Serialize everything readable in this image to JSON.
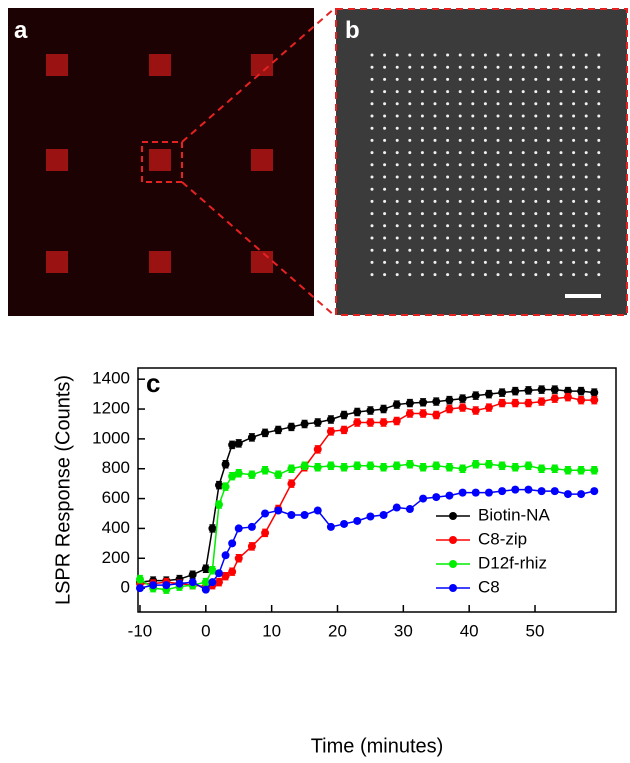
{
  "panel_labels": [
    "a",
    "b",
    "c"
  ],
  "chart_data": {
    "type": "line",
    "xlabel": "Time (minutes)",
    "ylabel": "LSPR Response (Counts)",
    "xlim": [
      -10.3,
      62.3
    ],
    "xticks": [
      -10,
      0,
      10,
      20,
      30,
      40,
      50
    ],
    "ylim": [
      -160,
      1475
    ],
    "yticks": [
      0,
      200,
      400,
      600,
      800,
      1000,
      1200,
      1400
    ],
    "legend": "lower right",
    "x": [
      -10,
      -8,
      -6,
      -4,
      -2,
      0,
      1,
      2,
      3,
      4,
      5,
      7,
      9,
      11,
      13,
      15,
      17,
      19,
      21,
      23,
      25,
      27,
      29,
      31,
      33,
      35,
      37,
      39,
      41,
      43,
      45,
      47,
      49,
      51,
      53,
      55,
      57,
      59
    ],
    "series": [
      {
        "name": "Biotin-NA",
        "color": "#000000",
        "error": 25,
        "values": [
          40,
          50,
          50,
          60,
          90,
          130,
          400,
          690,
          830,
          960,
          970,
          1010,
          1040,
          1060,
          1080,
          1100,
          1110,
          1130,
          1160,
          1180,
          1190,
          1200,
          1230,
          1240,
          1245,
          1250,
          1260,
          1270,
          1290,
          1300,
          1310,
          1320,
          1325,
          1330,
          1330,
          1320,
          1320,
          1310
        ]
      },
      {
        "name": "C8-zip",
        "color": "#ff0000",
        "error": 25,
        "values": [
          30,
          30,
          40,
          30,
          20,
          10,
          20,
          40,
          80,
          110,
          200,
          280,
          370,
          530,
          700,
          810,
          930,
          1050,
          1060,
          1110,
          1110,
          1110,
          1120,
          1170,
          1170,
          1160,
          1200,
          1210,
          1190,
          1210,
          1240,
          1240,
          1240,
          1250,
          1270,
          1280,
          1260,
          1260
        ]
      },
      {
        "name": "D12f-rhiz",
        "color": "#00ee00",
        "error": 25,
        "values": [
          60,
          0,
          -10,
          10,
          20,
          40,
          120,
          560,
          680,
          750,
          770,
          760,
          790,
          760,
          800,
          820,
          810,
          820,
          810,
          820,
          820,
          810,
          820,
          830,
          810,
          820,
          810,
          800,
          830,
          830,
          820,
          810,
          820,
          800,
          800,
          790,
          790,
          790
        ]
      },
      {
        "name": "C8",
        "color": "#0000ff",
        "error": 15,
        "values": [
          0,
          20,
          20,
          30,
          40,
          -10,
          40,
          100,
          220,
          300,
          400,
          410,
          500,
          520,
          490,
          490,
          520,
          410,
          430,
          450,
          480,
          490,
          540,
          530,
          600,
          610,
          620,
          640,
          640,
          640,
          650,
          660,
          660,
          650,
          650,
          630,
          630,
          650
        ]
      }
    ]
  }
}
